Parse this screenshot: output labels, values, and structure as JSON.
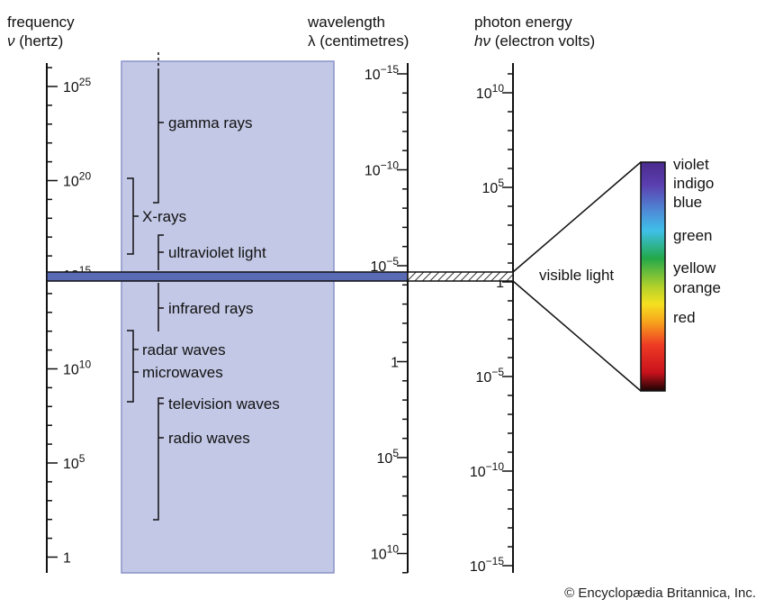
{
  "headers": {
    "frequency": {
      "line1": "frequency",
      "line2_symbol": "ν",
      "line2_rest": " (hertz)"
    },
    "wavelength": {
      "line1": "wavelength",
      "line2": "λ (centimetres)"
    },
    "energy": {
      "line1": "photon energy",
      "line2_symbol": "hν",
      "line2_rest": " (electron volts)"
    }
  },
  "frequency_axis": {
    "labels": [
      {
        "base": "10",
        "exp": "25",
        "power": 25
      },
      {
        "base": "10",
        "exp": "20",
        "power": 20
      },
      {
        "base": "10",
        "exp": "15",
        "power": 15
      },
      {
        "base": "10",
        "exp": "10",
        "power": 10
      },
      {
        "base": "10",
        "exp": "5",
        "power": 5
      },
      {
        "base": "1",
        "exp": "",
        "power": 0
      }
    ]
  },
  "wavelength_axis": {
    "labels": [
      {
        "base": "10",
        "exp": "−15",
        "power": -15
      },
      {
        "base": "10",
        "exp": "−10",
        "power": -10
      },
      {
        "base": "10",
        "exp": "−5",
        "power": -5
      },
      {
        "base": "1",
        "exp": "",
        "power": 0
      },
      {
        "base": "10",
        "exp": "5",
        "power": 5
      },
      {
        "base": "10",
        "exp": "10",
        "power": 10
      }
    ]
  },
  "energy_axis": {
    "labels": [
      {
        "base": "10",
        "exp": "10",
        "power": 10
      },
      {
        "base": "10",
        "exp": "5",
        "power": 5
      },
      {
        "base": "1",
        "exp": "",
        "power": 0
      },
      {
        "base": "10",
        "exp": "−5",
        "power": -5
      },
      {
        "base": "10",
        "exp": "−10",
        "power": -10
      },
      {
        "base": "10",
        "exp": "−15",
        "power": -15
      }
    ]
  },
  "bands": [
    {
      "label": "gamma rays"
    },
    {
      "label": "X-rays"
    },
    {
      "label": "ultraviolet light"
    },
    {
      "label": "infrared rays"
    },
    {
      "label": "radar waves"
    },
    {
      "label": "microwaves"
    },
    {
      "label": "television waves"
    },
    {
      "label": "radio waves"
    }
  ],
  "visible_light": {
    "label": "visible light",
    "colors": [
      "violet",
      "indigo",
      "blue",
      "green",
      "yellow",
      "orange",
      "red"
    ]
  },
  "colors": {
    "panel": "#c3c8e6",
    "panel_border": "#8a93c9",
    "visible_band": "#5a6bb5",
    "axis": "#111111"
  },
  "credit": "© Encyclopædia Britannica, Inc."
}
